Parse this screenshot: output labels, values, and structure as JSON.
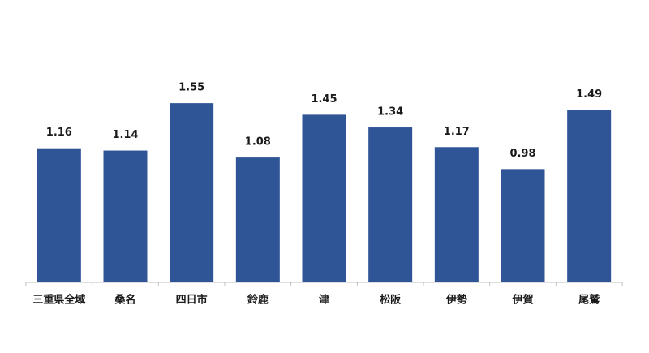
{
  "chart_data": {
    "type": "bar",
    "categories": [
      "三重県全域",
      "桑名",
      "四日市",
      "鈴鹿",
      "津",
      "松阪",
      "伊勢",
      "伊賀",
      "尾鷲"
    ],
    "values": [
      1.16,
      1.14,
      1.55,
      1.08,
      1.45,
      1.34,
      1.17,
      0.98,
      1.49
    ],
    "color": "#2f5597",
    "ylim": [
      0,
      2
    ]
  }
}
